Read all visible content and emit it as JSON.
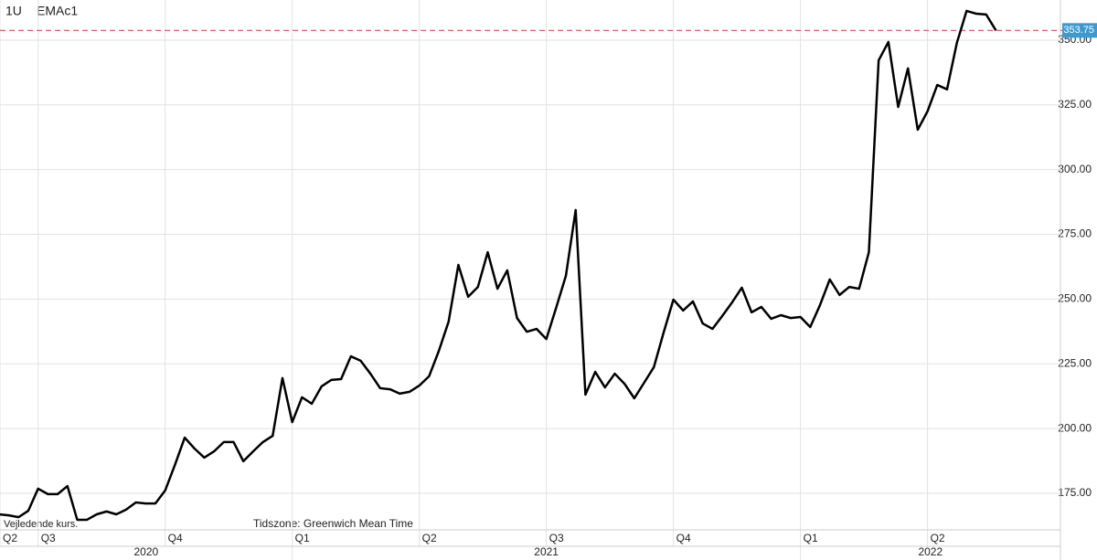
{
  "header": {
    "interval": "1U",
    "symbol": "EMAc1"
  },
  "chart_data": {
    "type": "line",
    "x": [
      -4,
      -3,
      -2,
      -1,
      0,
      1,
      2,
      3,
      4,
      5,
      6,
      7,
      8,
      9,
      10,
      11,
      12,
      13,
      14,
      15,
      16,
      17,
      18,
      19,
      20,
      21,
      22,
      23,
      24,
      25,
      26,
      27,
      28,
      29,
      30,
      31,
      32,
      33,
      34,
      35,
      36,
      37,
      38,
      39,
      40,
      41,
      42,
      43,
      44,
      45,
      46,
      47,
      48,
      49,
      50,
      51,
      52,
      53,
      54,
      55,
      56,
      57,
      58,
      59,
      60,
      61,
      62,
      63,
      64,
      65,
      66,
      67,
      68,
      69,
      70,
      71,
      72,
      73,
      74,
      75,
      76,
      77,
      78,
      79,
      80,
      81,
      82,
      83,
      84,
      85,
      86,
      87,
      88,
      89,
      90,
      91,
      92,
      93,
      94,
      95,
      96,
      97,
      98
    ],
    "series": [
      {
        "color": "#000000",
        "values": [
          166.9,
          166.5,
          165.8,
          168.3,
          176.8,
          174.7,
          174.7,
          177.8,
          164.8,
          164.8,
          166.9,
          168.0,
          166.9,
          168.7,
          171.5,
          171.1,
          171.1,
          176.1,
          186.0,
          196.5,
          192.3,
          188.8,
          191.2,
          194.8,
          194.8,
          187.4,
          191.2,
          194.8,
          197.2,
          219.5,
          202.5,
          212.1,
          209.6,
          216.3,
          218.8,
          219.1,
          227.9,
          226.2,
          221.2,
          215.6,
          215.2,
          213.5,
          214.2,
          216.6,
          220.2,
          230.0,
          241.3,
          263.2,
          250.9,
          254.7,
          268.1,
          254.0,
          261.1,
          242.7,
          237.4,
          238.5,
          234.6,
          246.6,
          259.0,
          284.4,
          213.1,
          221.9,
          215.9,
          221.2,
          217.3,
          211.7,
          217.7,
          223.7,
          237.1,
          249.8,
          245.6,
          249.1,
          240.6,
          238.5,
          243.5,
          248.7,
          254.4,
          244.9,
          247.0,
          242.4,
          243.8,
          242.7,
          243.1,
          239.2,
          247.7,
          257.6,
          251.6,
          254.7,
          254.0,
          268.1,
          342.2,
          349.3,
          324.2,
          339.1,
          315.4,
          322.5,
          332.7,
          331.0,
          348.9,
          361.3,
          360.2,
          359.9,
          353.75
        ]
      }
    ],
    "last_price": 353.75,
    "last_price_color": "#e05050",
    "last_price_box_color": "#3d9ad1",
    "ylim": [
      160.9,
      365.5
    ],
    "yticks": [
      {
        "value": 175,
        "label": "175.00"
      },
      {
        "value": 200,
        "label": "200.00"
      },
      {
        "value": 225,
        "label": "225.00"
      },
      {
        "value": 250,
        "label": "250.00"
      },
      {
        "value": 275,
        "label": "275.00"
      },
      {
        "value": 300,
        "label": "300.00"
      },
      {
        "value": 325,
        "label": "325.00"
      },
      {
        "value": 350,
        "label": "350.00"
      }
    ],
    "xlim": [
      -3.9,
      104.6
    ],
    "xticks": [
      {
        "value": -3.9,
        "label": "Q2"
      },
      {
        "value": 0,
        "label": "Q3"
      },
      {
        "value": 13,
        "label": "Q4"
      },
      {
        "value": 26,
        "label": "Q1"
      },
      {
        "value": 39,
        "label": "Q2"
      },
      {
        "value": 52,
        "label": "Q3"
      },
      {
        "value": 65,
        "label": "Q4"
      },
      {
        "value": 78,
        "label": "Q1"
      },
      {
        "value": 91,
        "label": "Q2"
      }
    ],
    "year_ticks": [
      {
        "value": -3.9,
        "label": "2020"
      },
      {
        "value": 26,
        "label": "2021"
      },
      {
        "value": 78,
        "label": "2022"
      }
    ],
    "grid": true,
    "annotations": [
      "Vejledende kurs.",
      "Tidszone: Greenwich Mean Time"
    ]
  }
}
